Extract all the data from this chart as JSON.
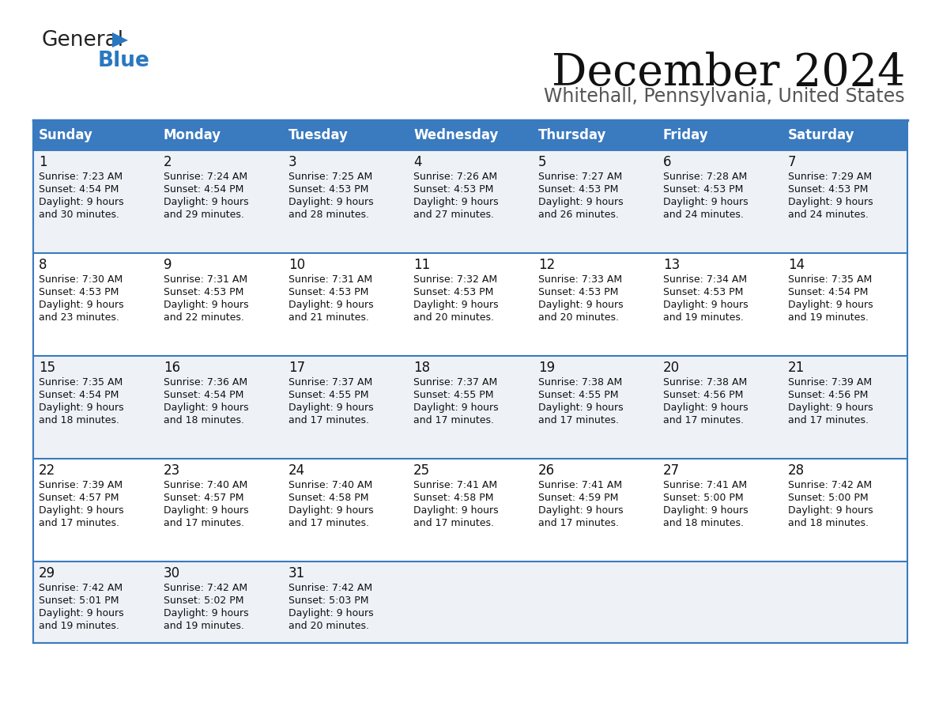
{
  "title": "December 2024",
  "subtitle": "Whitehall, Pennsylvania, United States",
  "header_color": "#3a7abf",
  "header_text_color": "#ffffff",
  "cell_bg_odd": "#eef2f7",
  "cell_bg_even": "#ffffff",
  "border_color": "#3a7abf",
  "text_color": "#000000",
  "subtitle_color": "#555555",
  "day_headers": [
    "Sunday",
    "Monday",
    "Tuesday",
    "Wednesday",
    "Thursday",
    "Friday",
    "Saturday"
  ],
  "calendar_data": [
    [
      {
        "day": "1",
        "sunrise": "7:23 AM",
        "sunset": "4:54 PM",
        "daylight": "9 hours",
        "daylight2": "and 30 minutes."
      },
      {
        "day": "2",
        "sunrise": "7:24 AM",
        "sunset": "4:54 PM",
        "daylight": "9 hours",
        "daylight2": "and 29 minutes."
      },
      {
        "day": "3",
        "sunrise": "7:25 AM",
        "sunset": "4:53 PM",
        "daylight": "9 hours",
        "daylight2": "and 28 minutes."
      },
      {
        "day": "4",
        "sunrise": "7:26 AM",
        "sunset": "4:53 PM",
        "daylight": "9 hours",
        "daylight2": "and 27 minutes."
      },
      {
        "day": "5",
        "sunrise": "7:27 AM",
        "sunset": "4:53 PM",
        "daylight": "9 hours",
        "daylight2": "and 26 minutes."
      },
      {
        "day": "6",
        "sunrise": "7:28 AM",
        "sunset": "4:53 PM",
        "daylight": "9 hours",
        "daylight2": "and 24 minutes."
      },
      {
        "day": "7",
        "sunrise": "7:29 AM",
        "sunset": "4:53 PM",
        "daylight": "9 hours",
        "daylight2": "and 24 minutes."
      }
    ],
    [
      {
        "day": "8",
        "sunrise": "7:30 AM",
        "sunset": "4:53 PM",
        "daylight": "9 hours",
        "daylight2": "and 23 minutes."
      },
      {
        "day": "9",
        "sunrise": "7:31 AM",
        "sunset": "4:53 PM",
        "daylight": "9 hours",
        "daylight2": "and 22 minutes."
      },
      {
        "day": "10",
        "sunrise": "7:31 AM",
        "sunset": "4:53 PM",
        "daylight": "9 hours",
        "daylight2": "and 21 minutes."
      },
      {
        "day": "11",
        "sunrise": "7:32 AM",
        "sunset": "4:53 PM",
        "daylight": "9 hours",
        "daylight2": "and 20 minutes."
      },
      {
        "day": "12",
        "sunrise": "7:33 AM",
        "sunset": "4:53 PM",
        "daylight": "9 hours",
        "daylight2": "and 20 minutes."
      },
      {
        "day": "13",
        "sunrise": "7:34 AM",
        "sunset": "4:53 PM",
        "daylight": "9 hours",
        "daylight2": "and 19 minutes."
      },
      {
        "day": "14",
        "sunrise": "7:35 AM",
        "sunset": "4:54 PM",
        "daylight": "9 hours",
        "daylight2": "and 19 minutes."
      }
    ],
    [
      {
        "day": "15",
        "sunrise": "7:35 AM",
        "sunset": "4:54 PM",
        "daylight": "9 hours",
        "daylight2": "and 18 minutes."
      },
      {
        "day": "16",
        "sunrise": "7:36 AM",
        "sunset": "4:54 PM",
        "daylight": "9 hours",
        "daylight2": "and 18 minutes."
      },
      {
        "day": "17",
        "sunrise": "7:37 AM",
        "sunset": "4:55 PM",
        "daylight": "9 hours",
        "daylight2": "and 17 minutes."
      },
      {
        "day": "18",
        "sunrise": "7:37 AM",
        "sunset": "4:55 PM",
        "daylight": "9 hours",
        "daylight2": "and 17 minutes."
      },
      {
        "day": "19",
        "sunrise": "7:38 AM",
        "sunset": "4:55 PM",
        "daylight": "9 hours",
        "daylight2": "and 17 minutes."
      },
      {
        "day": "20",
        "sunrise": "7:38 AM",
        "sunset": "4:56 PM",
        "daylight": "9 hours",
        "daylight2": "and 17 minutes."
      },
      {
        "day": "21",
        "sunrise": "7:39 AM",
        "sunset": "4:56 PM",
        "daylight": "9 hours",
        "daylight2": "and 17 minutes."
      }
    ],
    [
      {
        "day": "22",
        "sunrise": "7:39 AM",
        "sunset": "4:57 PM",
        "daylight": "9 hours",
        "daylight2": "and 17 minutes."
      },
      {
        "day": "23",
        "sunrise": "7:40 AM",
        "sunset": "4:57 PM",
        "daylight": "9 hours",
        "daylight2": "and 17 minutes."
      },
      {
        "day": "24",
        "sunrise": "7:40 AM",
        "sunset": "4:58 PM",
        "daylight": "9 hours",
        "daylight2": "and 17 minutes."
      },
      {
        "day": "25",
        "sunrise": "7:41 AM",
        "sunset": "4:58 PM",
        "daylight": "9 hours",
        "daylight2": "and 17 minutes."
      },
      {
        "day": "26",
        "sunrise": "7:41 AM",
        "sunset": "4:59 PM",
        "daylight": "9 hours",
        "daylight2": "and 17 minutes."
      },
      {
        "day": "27",
        "sunrise": "7:41 AM",
        "sunset": "5:00 PM",
        "daylight": "9 hours",
        "daylight2": "and 18 minutes."
      },
      {
        "day": "28",
        "sunrise": "7:42 AM",
        "sunset": "5:00 PM",
        "daylight": "9 hours",
        "daylight2": "and 18 minutes."
      }
    ],
    [
      {
        "day": "29",
        "sunrise": "7:42 AM",
        "sunset": "5:01 PM",
        "daylight": "9 hours",
        "daylight2": "and 19 minutes."
      },
      {
        "day": "30",
        "sunrise": "7:42 AM",
        "sunset": "5:02 PM",
        "daylight": "9 hours",
        "daylight2": "and 19 minutes."
      },
      {
        "day": "31",
        "sunrise": "7:42 AM",
        "sunset": "5:03 PM",
        "daylight": "9 hours",
        "daylight2": "and 20 minutes."
      },
      null,
      null,
      null,
      null
    ]
  ]
}
